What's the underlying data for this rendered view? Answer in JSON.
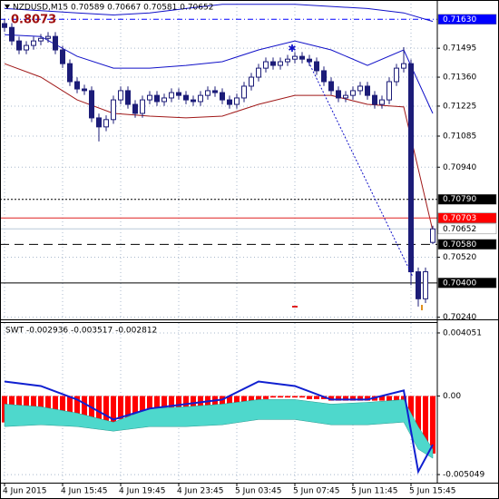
{
  "chart_data": [
    {
      "type": "candlestick",
      "title": "NZDUSD,M15  0.70589 0.70667 0.70581 0.70652",
      "annotation": "0.8073",
      "xlim": [
        -0.625,
        59.625
      ],
      "xticks": [
        {
          "value": 0,
          "label": "4 Jun 2015"
        },
        {
          "value": 8,
          "label": "4 Jun 15:45"
        },
        {
          "value": 16,
          "label": "4 Jun 19:45"
        },
        {
          "value": 24,
          "label": "4 Jun 23:45"
        },
        {
          "value": 32,
          "label": "5 Jun 03:45"
        },
        {
          "value": 40,
          "label": "5 Jun 07:45"
        },
        {
          "value": 48,
          "label": "5 Jun 11:45"
        },
        {
          "value": 56,
          "label": "5 Jun 15:45"
        }
      ],
      "ylim": [
        0.7023,
        0.7172
      ],
      "yticks": [
        0.71495,
        {
          "value": 0.7136,
          "label": "0.71360"
        },
        0.71225,
        0.71085,
        {
          "value": 0.7094,
          "label": "0.70940"
        },
        {
          "value": 0.7052,
          "label": "0.70520"
        },
        {
          "value": 0.7024,
          "label": "0.70240"
        }
      ],
      "grid": true,
      "up_color": "#ffffff",
      "down_color": "#1c1c78",
      "open": [
        0.7161,
        0.71592,
        0.71529,
        0.71487,
        0.71508,
        0.71529,
        0.71541,
        0.7155,
        0.71487,
        0.71423,
        0.71339,
        0.71305,
        0.71297,
        0.7117,
        0.71128,
        0.71162,
        0.71254,
        0.71297,
        0.71233,
        0.71191,
        0.71254,
        0.71275,
        0.71246,
        0.71263,
        0.71288,
        0.71275,
        0.71254,
        0.71246,
        0.71275,
        0.71297,
        0.71288,
        0.71254,
        0.71233,
        0.71263,
        0.71318,
        0.7136,
        0.71402,
        0.71432,
        0.71415,
        0.71432,
        0.71444,
        0.71457,
        0.71444,
        0.71432,
        0.7139,
        0.71339,
        0.71297,
        0.71263,
        0.71275,
        0.71297,
        0.71318,
        0.71275,
        0.71233,
        0.71254,
        0.71339,
        0.71402,
        0.71423,
        0.70452,
        0.70326,
        0.70589
      ],
      "high": [
        0.7163,
        0.71612,
        0.71549,
        0.71528,
        0.71549,
        0.71561,
        0.7157,
        0.7157,
        0.71507,
        0.71443,
        0.71359,
        0.71325,
        0.71317,
        0.7119,
        0.71182,
        0.71274,
        0.71317,
        0.71317,
        0.71253,
        0.71274,
        0.71295,
        0.71295,
        0.71283,
        0.71308,
        0.71308,
        0.71295,
        0.71274,
        0.71295,
        0.71317,
        0.71317,
        0.71308,
        0.71274,
        0.71283,
        0.71338,
        0.7138,
        0.71422,
        0.71452,
        0.71452,
        0.71452,
        0.71464,
        0.71477,
        0.71477,
        0.71464,
        0.71452,
        0.7141,
        0.71359,
        0.71317,
        0.71295,
        0.71317,
        0.71338,
        0.71338,
        0.71295,
        0.71274,
        0.71359,
        0.71422,
        0.715,
        0.71443,
        0.70472,
        0.70472,
        0.70667
      ],
      "low": [
        0.71572,
        0.71509,
        0.71467,
        0.71467,
        0.71488,
        0.71509,
        0.71521,
        0.71467,
        0.71403,
        0.71319,
        0.71285,
        0.71277,
        0.7115,
        0.7106,
        0.71108,
        0.71142,
        0.71234,
        0.71213,
        0.71171,
        0.71171,
        0.71234,
        0.71226,
        0.71226,
        0.71243,
        0.71255,
        0.71234,
        0.71226,
        0.71226,
        0.71255,
        0.71268,
        0.71234,
        0.71213,
        0.71213,
        0.71243,
        0.71298,
        0.7134,
        0.71382,
        0.71395,
        0.71395,
        0.71412,
        0.71424,
        0.71424,
        0.71412,
        0.7137,
        0.71319,
        0.71277,
        0.71243,
        0.71243,
        0.71255,
        0.71277,
        0.71255,
        0.71213,
        0.71213,
        0.71234,
        0.71319,
        0.71382,
        0.7039,
        0.7029,
        0.70306,
        0.70581
      ],
      "close": [
        0.71592,
        0.71529,
        0.71487,
        0.71508,
        0.71529,
        0.71541,
        0.7155,
        0.71487,
        0.71423,
        0.71339,
        0.71305,
        0.71297,
        0.7117,
        0.71128,
        0.71162,
        0.71254,
        0.71297,
        0.71233,
        0.71191,
        0.71254,
        0.71275,
        0.71246,
        0.71263,
        0.71288,
        0.71275,
        0.71254,
        0.71246,
        0.71275,
        0.71297,
        0.71288,
        0.71254,
        0.71233,
        0.71263,
        0.71318,
        0.7136,
        0.71402,
        0.71432,
        0.71415,
        0.71432,
        0.71444,
        0.71457,
        0.71444,
        0.71432,
        0.7139,
        0.71339,
        0.71297,
        0.71263,
        0.71275,
        0.71297,
        0.71318,
        0.71275,
        0.71233,
        0.71254,
        0.71339,
        0.71402,
        0.71423,
        0.70452,
        0.70326,
        0.70452,
        0.70652
      ],
      "lines": [
        {
          "color": "#1010c8",
          "x": [
            0,
            5,
            10,
            15,
            20,
            25,
            30,
            35,
            40,
            45,
            50,
            55,
            59
          ],
          "values": [
            0.7168,
            0.7167,
            0.7166,
            0.7165,
            0.7166,
            0.7168,
            0.717,
            0.717,
            0.717,
            0.7169,
            0.7168,
            0.7166,
            0.7162
          ]
        },
        {
          "color": "#1010c8",
          "x": [
            0,
            5,
            10,
            15,
            20,
            25,
            30,
            35,
            40,
            45,
            50,
            55,
            59
          ],
          "values": [
            0.71558,
            0.7155,
            0.71457,
            0.71402,
            0.71402,
            0.71415,
            0.71432,
            0.71487,
            0.71529,
            0.71487,
            0.71415,
            0.71487,
            0.71191
          ]
        },
        {
          "color": "#a01818",
          "x": [
            0,
            5,
            10,
            15,
            20,
            25,
            30,
            35,
            40,
            45,
            50,
            55,
            59
          ],
          "values": [
            0.71423,
            0.7136,
            0.71254,
            0.71191,
            0.71178,
            0.7117,
            0.71178,
            0.71233,
            0.71275,
            0.71275,
            0.71233,
            0.71221,
            0.70643
          ]
        }
      ],
      "levels": [
        {
          "value": 0.7163,
          "label": "0.71630",
          "color": "#0000ff",
          "style": "dashdot",
          "label_bg": "#0000ff",
          "label_color": "#ffffff"
        },
        {
          "value": 0.7079,
          "label": "0.70790",
          "color": "#000000",
          "style": "dot",
          "label_bg": "#000000",
          "label_color": "#ffffff"
        },
        {
          "value": 0.70703,
          "color": "#e02020",
          "style": "solid",
          "label_bg": "#ff0000",
          "label_color": "#ffffff"
        },
        {
          "value": 0.70652,
          "color": "#b8c8d8",
          "style": "solid",
          "label_bg": "#ffffff",
          "label_color": "#000000"
        },
        {
          "value": 0.7058,
          "label": "0.70580",
          "color": "#000000",
          "style": "dash",
          "label_bg": "#000000",
          "label_color": "#ffffff"
        },
        {
          "value": 0.704,
          "label": "0.70400",
          "color": "#000000",
          "style": "solid",
          "label_bg": "#000000",
          "label_color": "#ffffff"
        }
      ]
    },
    {
      "type": "indicator",
      "title": "SWT -0.002936 -0.003517 -0.002812",
      "xlim": [
        -0.625,
        59.625
      ],
      "ylim": [
        -0.00557,
        0.00469
      ],
      "yticks": [
        0.004051,
        {
          "value": 0,
          "label": "0.00"
        },
        -0.005049
      ],
      "grid": true,
      "histogram": {
        "color": "#ff0000",
        "values": [
          -0.0017,
          -0.0017,
          -0.0016,
          -0.0016,
          -0.0015,
          -0.0014,
          -0.0014,
          -0.0014,
          -0.0015,
          -0.0016,
          -0.0018,
          -0.0019,
          -0.002,
          -0.002,
          -0.0019,
          -0.0017,
          -0.0015,
          -0.0014,
          -0.0013,
          -0.0012,
          -0.0012,
          -0.0011,
          -0.0011,
          -0.0011,
          -0.001,
          -0.001,
          -0.001,
          -0.0009,
          -0.0009,
          -0.0008,
          -0.0008,
          -0.0007,
          -0.0006,
          -0.0005,
          -0.0004,
          -0.0003,
          -0.0002,
          -0.0001,
          -0.0001,
          -0.0001,
          -0.0001,
          -0.0001,
          -0.0002,
          -0.0002,
          -0.0002,
          -0.0003,
          -0.0003,
          -0.0003,
          -0.0003,
          -0.0003,
          -0.0003,
          -0.0003,
          -0.0003,
          -0.0003,
          -0.0003,
          -0.0008,
          -0.002,
          -0.0028,
          -0.0034,
          -0.0037
        ]
      },
      "area": {
        "color": "#4ed8cc",
        "x": [
          0,
          5,
          10,
          15,
          20,
          25,
          30,
          35,
          40,
          45,
          50,
          55,
          57,
          59
        ],
        "upper": [
          -0.00052,
          -0.00069,
          -0.0011,
          -0.00168,
          -0.00081,
          -0.00069,
          -0.00052,
          -0.00023,
          -0.00023,
          -0.00052,
          -0.00041,
          -0.00023,
          -0.00197,
          -0.00342
        ],
        "lower": [
          -0.00197,
          -0.00185,
          -0.00197,
          -0.00226,
          -0.00197,
          -0.00197,
          -0.00185,
          -0.00151,
          -0.00151,
          -0.00185,
          -0.00185,
          -0.00168,
          -0.00342,
          -0.004
        ]
      },
      "line": {
        "color": "#1020d0",
        "x": [
          0,
          5,
          10,
          15,
          20,
          25,
          30,
          35,
          40,
          45,
          50,
          55,
          57,
          59
        ],
        "values": [
          0.00093,
          0.00064,
          -0.00023,
          -0.00151,
          -0.00081,
          -0.00052,
          -0.00023,
          0.00093,
          0.00064,
          -0.00023,
          -0.00023,
          0.00035,
          -0.00486,
          -0.00313
        ]
      }
    }
  ]
}
